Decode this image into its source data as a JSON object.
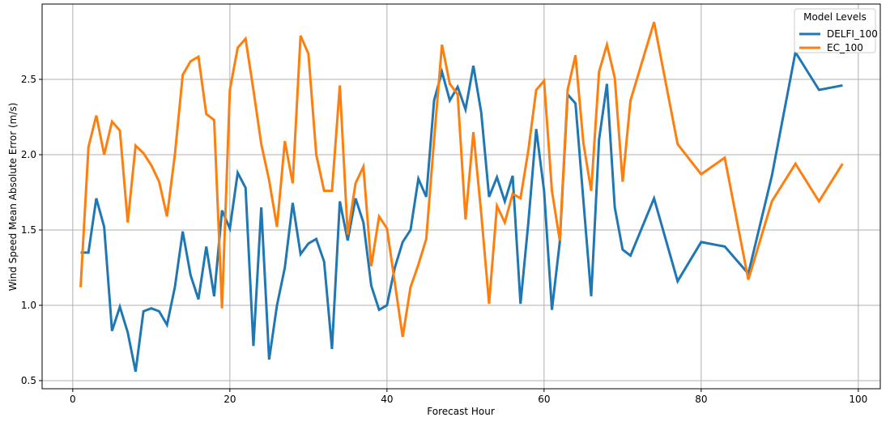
{
  "chart_data": {
    "type": "line",
    "xlabel": "Forecast Hour",
    "ylabel": "Wind Speed Mean Absolute Error (m/s)",
    "legend_title": "Model Levels",
    "legend": "upper right",
    "grid": true,
    "x": [
      1,
      2,
      3,
      4,
      5,
      6,
      7,
      8,
      9,
      10,
      11,
      12,
      13,
      14,
      15,
      16,
      17,
      18,
      19,
      20,
      21,
      22,
      23,
      24,
      25,
      26,
      27,
      28,
      29,
      30,
      31,
      32,
      33,
      34,
      35,
      36,
      37,
      38,
      39,
      40,
      41,
      42,
      43,
      44,
      45,
      46,
      47,
      48,
      49,
      50,
      51,
      52,
      53,
      54,
      55,
      56,
      57,
      58,
      59,
      60,
      61,
      62,
      63,
      64,
      65,
      66,
      67,
      68,
      69,
      70,
      71,
      74,
      77,
      80,
      83,
      86,
      89,
      92,
      95,
      98
    ],
    "series": [
      {
        "name": "DELFI_100",
        "color": "#1f77b4",
        "values": [
          1.35,
          1.35,
          1.71,
          1.52,
          0.83,
          0.99,
          0.82,
          0.56,
          0.96,
          0.98,
          0.96,
          0.87,
          1.12,
          1.49,
          1.2,
          1.04,
          1.39,
          1.06,
          1.63,
          1.51,
          1.88,
          1.78,
          0.73,
          1.65,
          0.64,
          1.0,
          1.25,
          1.68,
          1.34,
          1.41,
          1.44,
          1.29,
          0.71,
          1.69,
          1.43,
          1.71,
          1.55,
          1.13,
          0.97,
          1.0,
          1.25,
          1.42,
          1.5,
          1.84,
          1.72,
          2.36,
          2.55,
          2.36,
          2.45,
          2.3,
          2.59,
          2.28,
          1.72,
          1.85,
          1.69,
          1.86,
          1.01,
          1.55,
          2.17,
          1.76,
          0.97,
          1.42,
          2.4,
          2.34,
          1.7,
          1.06,
          2.1,
          2.47,
          1.65,
          1.37,
          1.33,
          1.71,
          1.16,
          1.42,
          1.39,
          1.21,
          1.86,
          2.68,
          2.43,
          2.46
        ]
      },
      {
        "name": "EC_100",
        "color": "#ff7f0e",
        "values": [
          1.12,
          2.05,
          2.26,
          2.0,
          2.22,
          2.16,
          1.55,
          2.06,
          2.01,
          1.93,
          1.82,
          1.59,
          2.0,
          2.53,
          2.62,
          2.65,
          2.27,
          2.23,
          0.98,
          2.43,
          2.71,
          2.77,
          2.43,
          2.07,
          1.83,
          1.52,
          2.09,
          1.81,
          2.79,
          2.67,
          2.0,
          1.76,
          1.76,
          2.46,
          1.47,
          1.81,
          1.92,
          1.26,
          1.59,
          1.51,
          1.15,
          0.79,
          1.12,
          1.27,
          1.44,
          2.1,
          2.73,
          2.47,
          2.4,
          1.57,
          2.15,
          1.61,
          1.01,
          1.66,
          1.55,
          1.74,
          1.71,
          2.03,
          2.43,
          2.49,
          1.76,
          1.43,
          2.43,
          2.66,
          2.08,
          1.76,
          2.55,
          2.73,
          2.51,
          1.82,
          2.36,
          2.88,
          2.07,
          1.87,
          1.98,
          1.17,
          1.69,
          1.94,
          1.69,
          1.94
        ]
      }
    ],
    "xlim": [
      -3.9,
      102.8
    ],
    "xticks": [
      0,
      20,
      40,
      60,
      80,
      100
    ],
    "ylim": [
      0.446,
      3.0
    ],
    "yticks": [
      {
        "value": 0.5,
        "label": "0.5"
      },
      {
        "value": 1.0,
        "label": "1.0"
      },
      {
        "value": 1.5,
        "label": "1.5"
      },
      {
        "value": 2.0,
        "label": "2.0"
      },
      {
        "value": 2.5,
        "label": "2.5"
      }
    ]
  }
}
